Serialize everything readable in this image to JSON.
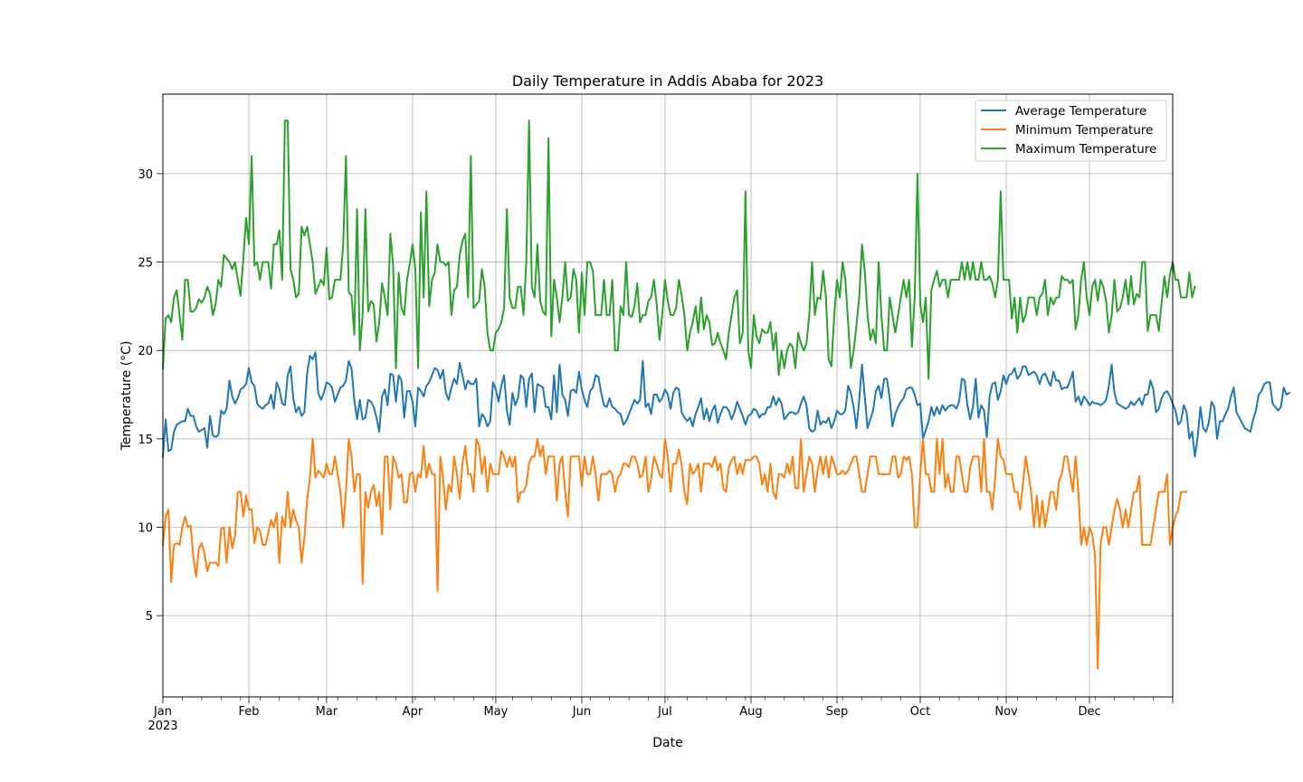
{
  "chart_data": {
    "type": "line",
    "title": "Daily Temperature in Addis Ababa for 2023",
    "xlabel": "Date",
    "ylabel": "Temperature (°C)",
    "x_start": "2023-01-01",
    "x_end": "2023-12-31",
    "x_tick_labels": [
      "Jan",
      "Feb",
      "Mar",
      "Apr",
      "May",
      "Jun",
      "Jul",
      "Aug",
      "Sep",
      "Oct",
      "Nov",
      "Dec"
    ],
    "x_year_label": "2023",
    "ylim": [
      0.4,
      34.5
    ],
    "y_ticks": [
      5,
      10,
      15,
      20,
      25,
      30
    ],
    "grid": true,
    "legend_position": "top-right",
    "series": [
      {
        "name": "Average Temperature",
        "color": "#1f77b4",
        "values": [
          14.0,
          16.1,
          14.3,
          14.4,
          15.4,
          15.8,
          15.9,
          16.0,
          16.0,
          16.7,
          16.3,
          16.3,
          15.7,
          15.4,
          15.5,
          15.6,
          14.5,
          16.3,
          15.2,
          15.1,
          15.2,
          16.6,
          16.4,
          16.7,
          18.3,
          17.4,
          17.0,
          17.3,
          17.8,
          17.9,
          18.1,
          19.0,
          18.2,
          18.0,
          17.0,
          16.8,
          16.7,
          16.9,
          17.0,
          17.5,
          16.7,
          18.2,
          17.8,
          17.0,
          16.9,
          18.6,
          19.1,
          17.3,
          16.5,
          16.8,
          16.3,
          16.5,
          18.7,
          19.7,
          19.5,
          19.9,
          17.6,
          17.2,
          17.6,
          18.2,
          18.1,
          17.9,
          17.1,
          17.5,
          17.9,
          18.0,
          18.3,
          19.4,
          19.0,
          17.2,
          16.1,
          17.2,
          16.1,
          16.2,
          17.2,
          17.1,
          16.8,
          16.2,
          15.4,
          17.4,
          17.8,
          16.9,
          18.7,
          18.6,
          17.1,
          18.6,
          18.3,
          16.2,
          17.7,
          17.7,
          17.1,
          15.7,
          17.9,
          17.7,
          17.4,
          18.0,
          18.2,
          18.6,
          19.0,
          18.9,
          18.4,
          18.9,
          17.6,
          17.2,
          17.9,
          18.4,
          18.1,
          19.3,
          18.6,
          17.8,
          18.3,
          18.1,
          18.1,
          18.4,
          15.7,
          16.4,
          16.2,
          15.7,
          16.0,
          18.2,
          17.8,
          17.1,
          18.0,
          18.6,
          16.6,
          15.8,
          17.6,
          16.9,
          17.3,
          18.6,
          18.4,
          16.8,
          18.4,
          18.7,
          16.5,
          18.1,
          18.0,
          17.9,
          16.8,
          16.8,
          16.1,
          18.6,
          16.5,
          19.2,
          17.5,
          17.2,
          16.3,
          17.7,
          17.8,
          17.6,
          18.8,
          17.8,
          17.2,
          16.8,
          17.7,
          17.9,
          18.6,
          18.5,
          17.6,
          16.9,
          16.8,
          17.3,
          16.8,
          16.7,
          16.5,
          16.4,
          15.8,
          16.0,
          16.4,
          16.8,
          17.2,
          17.0,
          17.2,
          19.4,
          16.8,
          17.0,
          16.4,
          17.5,
          17.5,
          17.1,
          17.3,
          17.8,
          17.5,
          16.7,
          17.6,
          17.9,
          17.8,
          16.5,
          16.2,
          16.0,
          16.2,
          15.7,
          16.4,
          16.8,
          17.3,
          16.1,
          16.7,
          16.0,
          16.6,
          16.9,
          15.9,
          16.4,
          16.8,
          16.8,
          16.6,
          16.1,
          16.5,
          17.1,
          16.7,
          16.3,
          15.8,
          16.3,
          16.4,
          16.7,
          16.6,
          16.2,
          16.4,
          16.4,
          16.8,
          16.8,
          17.4,
          16.9,
          17.3,
          17.0,
          16.1,
          16.3,
          16.5,
          16.5,
          16.4,
          16.5,
          17.0,
          17.4,
          16.9,
          15.6,
          15.4,
          15.5,
          16.6,
          15.8,
          16.0,
          15.9,
          16.2,
          15.6,
          16.0,
          16.6,
          16.4,
          16.4,
          16.6,
          18.0,
          17.6,
          16.8,
          15.6,
          17.2,
          19.2,
          17.4,
          15.6,
          16.1,
          16.6,
          17.7,
          18.0,
          17.3,
          18.4,
          18.4,
          17.3,
          15.7,
          16.4,
          16.8,
          17.1,
          17.3,
          17.8,
          17.9,
          17.9,
          17.5,
          16.9,
          17.0,
          15.0,
          15.5,
          16.0,
          16.8,
          16.3,
          16.8,
          16.4,
          16.9,
          16.6,
          16.8,
          16.9,
          16.9,
          16.7,
          17.1,
          18.4,
          18.3,
          16.9,
          16.1,
          16.8,
          18.4,
          16.2,
          16.9,
          16.6,
          15.1,
          17.4,
          18.1,
          18.2,
          17.2,
          17.7,
          18.6,
          18.1,
          18.6,
          18.7,
          19.0,
          18.4,
          18.6,
          19.1,
          19.1,
          18.6,
          18.7,
          18.8,
          18.6,
          18.1,
          18.6,
          18.7,
          18.3,
          18.0,
          18.8,
          18.3,
          18.3,
          17.8,
          17.9,
          17.9,
          18.3,
          18.8,
          17.1,
          17.4,
          16.9,
          17.4,
          17.2,
          16.9,
          17.1,
          17.0,
          17.0,
          16.9,
          17.0,
          17.2,
          18.0,
          19.2,
          17.6,
          17.0,
          16.9,
          16.8,
          16.7,
          16.8,
          17.1,
          16.9,
          17.1,
          17.3,
          16.9,
          17.5,
          17.5,
          18.3,
          17.8,
          16.5,
          16.7,
          17.3,
          17.6,
          17.7,
          17.4,
          17.0,
          16.6,
          15.8,
          16.0,
          16.9,
          16.5,
          15.0,
          15.4,
          14.0,
          15.1,
          16.8,
          15.6,
          15.4,
          15.9,
          17.1,
          16.8,
          15.0,
          16.0,
          16.0,
          16.4,
          16.7,
          17.4,
          17.9,
          16.5,
          16.2,
          15.9,
          15.6,
          15.5,
          15.4,
          16.1,
          16.6,
          17.5,
          17.7,
          18.1,
          18.2,
          18.2,
          17.0,
          16.8,
          16.6,
          16.8,
          17.9,
          17.5,
          17.6
        ]
      },
      {
        "name": "Minimum Temperature",
        "color": "#ff7f0e",
        "values": [
          9.0,
          10.6,
          11.0,
          6.9,
          9.0,
          9.1,
          9.0,
          10.0,
          10.6,
          10.0,
          10.1,
          8.3,
          7.2,
          8.8,
          9.1,
          8.5,
          7.5,
          8.0,
          8.0,
          8.0,
          7.8,
          9.9,
          10.0,
          8.0,
          10.0,
          8.8,
          9.5,
          12.0,
          12.0,
          10.6,
          11.8,
          11.0,
          11.0,
          9.1,
          10.0,
          9.8,
          9.0,
          9.0,
          9.7,
          10.4,
          10.0,
          10.8,
          8.0,
          10.6,
          10.0,
          12.0,
          10.0,
          11.0,
          10.4,
          10.0,
          8.0,
          9.4,
          11.5,
          12.8,
          15.0,
          12.8,
          13.2,
          13.0,
          12.8,
          13.6,
          13.0,
          13.0,
          14.0,
          13.0,
          12.0,
          10.0,
          12.0,
          15.0,
          14.0,
          12.0,
          13.0,
          13.0,
          6.8,
          12.0,
          11.1,
          12.0,
          12.4,
          11.2,
          12.0,
          9.6,
          14.0,
          14.0,
          11.0,
          14.0,
          13.6,
          12.8,
          13.0,
          11.4,
          11.4,
          13.0,
          13.1,
          12.0,
          13.0,
          12.8,
          14.6,
          12.8,
          13.6,
          13.0,
          13.0,
          6.4,
          14.0,
          12.8,
          11.0,
          12.4,
          12.0,
          14.0,
          13.0,
          11.6,
          13.6,
          14.6,
          13.0,
          13.0,
          12.0,
          15.0,
          14.6,
          13.0,
          14.0,
          12.0,
          13.6,
          13.0,
          13.0,
          13.0,
          14.3,
          14.0,
          13.4,
          14.0,
          13.4,
          14.0,
          11.4,
          12.0,
          12.0,
          12.4,
          13.6,
          14.0,
          14.0,
          15.0,
          14.0,
          14.6,
          13.0,
          14.0,
          14.0,
          14.0,
          11.5,
          13.6,
          14.0,
          12.0,
          10.6,
          14.0,
          14.0,
          14.0,
          14.0,
          12.3,
          14.0,
          13.0,
          13.0,
          14.0,
          13.0,
          11.5,
          13.0,
          13.0,
          13.0,
          13.2,
          13.0,
          12.0,
          12.8,
          13.0,
          13.6,
          13.6,
          13.4,
          14.0,
          14.0,
          13.6,
          12.8,
          13.0,
          14.0,
          12.0,
          12.7,
          14.0,
          13.6,
          13.0,
          12.8,
          15.0,
          14.0,
          12.0,
          13.6,
          13.6,
          14.4,
          13.5,
          12.0,
          11.3,
          13.6,
          13.0,
          13.2,
          13.6,
          12.0,
          13.6,
          13.6,
          13.6,
          13.4,
          14.0,
          13.2,
          13.6,
          12.2,
          12.0,
          13.4,
          13.8,
          14.0,
          13.0,
          13.6,
          13.0,
          13.8,
          13.8,
          13.8,
          14.0,
          14.0,
          13.6,
          12.4,
          13.0,
          12.0,
          13.6,
          12.0,
          11.6,
          13.0,
          13.0,
          12.8,
          13.6,
          13.0,
          14.0,
          12.2,
          12.2,
          15.0,
          12.0,
          13.0,
          14.0,
          13.6,
          12.0,
          13.2,
          14.0,
          13.0,
          14.0,
          12.8,
          14.0,
          13.6,
          13.0,
          13.0,
          13.2,
          13.0,
          13.2,
          13.6,
          14.0,
          14.0,
          13.0,
          12.0,
          12.0,
          13.0,
          14.0,
          14.0,
          14.0,
          13.0,
          13.0,
          13.0,
          13.0,
          13.0,
          14.0,
          14.0,
          12.8,
          13.0,
          14.0,
          13.8,
          14.0,
          13.0,
          10.0,
          10.0,
          13.0,
          15.0,
          13.0,
          13.0,
          12.0,
          12.0,
          15.0,
          13.0,
          15.0,
          12.2,
          13.0,
          12.0,
          12.0,
          14.0,
          14.0,
          13.0,
          12.0,
          12.0,
          13.4,
          14.0,
          14.0,
          14.0,
          12.0,
          15.0,
          12.0,
          12.0,
          11.0,
          12.8,
          15.0,
          14.0,
          13.8,
          13.0,
          13.0,
          13.0,
          12.0,
          12.0,
          11.0,
          12.4,
          14.0,
          13.0,
          12.0,
          10.0,
          11.8,
          10.0,
          11.5,
          10.0,
          11.0,
          12.0,
          12.0,
          11.0,
          12.6,
          13.0,
          14.0,
          14.0,
          13.0,
          12.0,
          14.0,
          12.0,
          9.0,
          10.0,
          9.0,
          10.0,
          9.6,
          8.4,
          2.0,
          9.0,
          10.0,
          10.0,
          9.0,
          10.0,
          11.0,
          11.6,
          11.0,
          10.0,
          11.0,
          10.0,
          11.0,
          12.0,
          12.0,
          12.9,
          9.0,
          9.0,
          9.0,
          9.0,
          10.0,
          11.0,
          12.0,
          12.0,
          12.0,
          13.0,
          9.0,
          10.0,
          10.6,
          11.0,
          12.0,
          12.0,
          12.0
        ]
      },
      {
        "name": "Maximum Temperature",
        "color": "#2ca02c",
        "values": [
          19.0,
          21.8,
          22.0,
          21.6,
          23.0,
          23.4,
          22.0,
          20.6,
          24.0,
          24.0,
          22.2,
          22.2,
          22.4,
          22.9,
          22.7,
          23.0,
          23.6,
          23.2,
          22.0,
          22.6,
          24.0,
          23.6,
          25.4,
          25.2,
          25.0,
          24.6,
          25.0,
          24.0,
          23.1,
          25.2,
          27.5,
          26.0,
          31.0,
          24.8,
          25.0,
          24.0,
          25.0,
          25.0,
          25.0,
          23.5,
          26.0,
          26.0,
          26.8,
          24.0,
          33.0,
          33.0,
          24.6,
          24.0,
          23.0,
          23.2,
          27.0,
          26.5,
          27.0,
          26.0,
          25.0,
          23.2,
          23.6,
          24.0,
          23.7,
          25.8,
          22.9,
          23.0,
          24.0,
          24.0,
          24.0,
          26.0,
          31.0,
          23.3,
          23.1,
          20.9,
          28.0,
          20.0,
          22.0,
          28.0,
          22.2,
          22.8,
          22.6,
          20.5,
          21.6,
          23.8,
          23.0,
          22.0,
          26.6,
          24.8,
          19.0,
          24.4,
          22.4,
          22.0,
          24.0,
          24.9,
          26.0,
          24.6,
          19.0,
          27.8,
          23.0,
          29.0,
          22.5,
          24.0,
          24.4,
          26.0,
          25.0,
          25.0,
          24.8,
          25.0,
          22.0,
          23.4,
          23.6,
          25.4,
          26.2,
          26.6,
          23.0,
          31.0,
          22.4,
          22.6,
          22.8,
          24.6,
          23.6,
          21.0,
          20.0,
          20.0,
          21.0,
          21.2,
          21.6,
          22.4,
          28.0,
          23.0,
          22.4,
          22.4,
          23.6,
          23.6,
          22.0,
          25.0,
          33.0,
          23.6,
          23.0,
          26.0,
          22.8,
          22.2,
          22.0,
          32.0,
          20.8,
          24.0,
          23.0,
          21.6,
          23.0,
          25.0,
          22.8,
          23.0,
          24.6,
          24.0,
          21.0,
          24.4,
          22.0,
          25.0,
          25.0,
          24.5,
          22.0,
          22.0,
          22.0,
          24.0,
          22.0,
          22.0,
          24.0,
          20.0,
          20.0,
          22.5,
          22.0,
          25.0,
          22.0,
          21.9,
          22.5,
          23.8,
          21.6,
          22.0,
          22.0,
          22.8,
          23.0,
          24.0,
          22.6,
          20.6,
          22.0,
          24.0,
          22.8,
          22.0,
          22.0,
          22.4,
          24.0,
          23.1,
          22.0,
          20.0,
          21.0,
          21.6,
          22.5,
          21.0,
          23.0,
          21.2,
          22.0,
          21.6,
          20.3,
          20.4,
          21.0,
          20.4,
          20.0,
          19.5,
          21.0,
          22.0,
          23.0,
          23.4,
          20.4,
          21.0,
          29.0,
          20.0,
          19.0,
          22.0,
          20.8,
          20.4,
          21.2,
          21.0,
          21.0,
          21.6,
          20.0,
          21.0,
          18.6,
          20.0,
          19.0,
          20.0,
          20.4,
          20.2,
          19.0,
          21.0,
          20.4,
          20.0,
          20.4,
          22.0,
          25.0,
          22.0,
          23.0,
          22.9,
          24.5,
          23.0,
          19.5,
          19.1,
          22.0,
          24.0,
          23.0,
          25.0,
          24.0,
          21.6,
          19.0,
          20.0,
          21.4,
          23.0,
          26.0,
          24.5,
          22.0,
          20.6,
          21.2,
          20.4,
          25.0,
          22.0,
          20.0,
          20.0,
          23.0,
          22.0,
          21.0,
          22.0,
          23.0,
          24.0,
          23.0,
          24.0,
          20.2,
          23.0,
          30.0,
          22.6,
          21.6,
          23.0,
          18.4,
          23.4,
          24.0,
          24.5,
          23.6,
          24.0,
          24.0,
          23.0,
          24.0,
          24.0,
          24.0,
          24.0,
          25.0,
          24.0,
          25.0,
          24.0,
          25.0,
          24.0,
          24.0,
          25.0,
          24.0,
          24.0,
          24.2,
          23.8,
          23.0,
          24.0,
          29.0,
          24.0,
          24.0,
          24.0,
          21.8,
          23.0,
          21.0,
          23.0,
          21.6,
          22.0,
          23.0,
          23.0,
          23.0,
          22.0,
          23.0,
          23.2,
          24.0,
          22.0,
          23.0,
          22.6,
          23.0,
          23.0,
          24.2,
          24.0,
          24.0,
          23.8,
          24.0,
          21.2,
          22.0,
          24.0,
          25.0,
          23.0,
          22.0,
          23.6,
          24.0,
          22.8,
          24.0,
          23.6,
          22.8,
          21.0,
          22.0,
          24.0,
          22.2,
          22.4,
          23.0,
          24.0,
          22.6,
          24.2,
          22.6,
          23.2,
          23.0,
          25.0,
          25.0,
          21.1,
          22.0,
          22.0,
          22.0,
          21.1,
          22.7,
          24.2,
          23.0,
          24.3,
          25.0,
          24.0,
          24.0,
          23.0,
          23.0,
          23.0,
          24.4,
          23.0,
          23.6
        ]
      }
    ]
  }
}
